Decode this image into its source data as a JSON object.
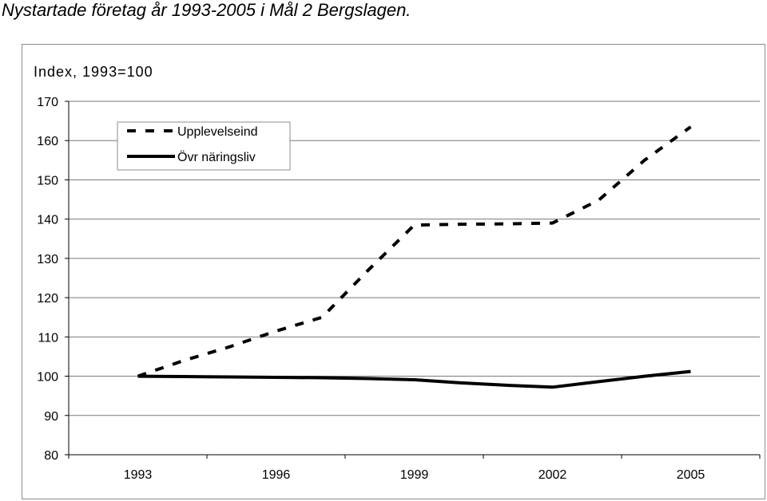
{
  "title": "Nystartade företag år 1993-2005 i Mål 2 Bergslagen.",
  "chart_data": {
    "type": "line",
    "ylabel": "Index, 1993=100",
    "ylim": [
      80,
      170
    ],
    "yticks": [
      80,
      90,
      100,
      110,
      120,
      130,
      140,
      150,
      160,
      170
    ],
    "x": [
      1993,
      1994,
      1995,
      1996,
      1997,
      1998,
      1999,
      2000,
      2001,
      2002,
      2003,
      2004,
      2005
    ],
    "xtick_labels": [
      "1993",
      "1996",
      "1999",
      "2002",
      "2005"
    ],
    "grid": true,
    "legend_position": "top-left",
    "series": [
      {
        "name": "Upplevelseind",
        "style": "dashed",
        "color": "#000000",
        "values": [
          100,
          104,
          107.5,
          111.5,
          115,
          127,
          138.5,
          138.7,
          138.8,
          139,
          144.8,
          155,
          163.5
        ]
      },
      {
        "name": "Övr näringsliv",
        "style": "solid",
        "color": "#000000",
        "values": [
          100,
          99.9,
          99.8,
          99.7,
          99.6,
          99.4,
          99.1,
          98.3,
          97.7,
          97.2,
          98.6,
          100,
          101.2
        ]
      }
    ]
  }
}
